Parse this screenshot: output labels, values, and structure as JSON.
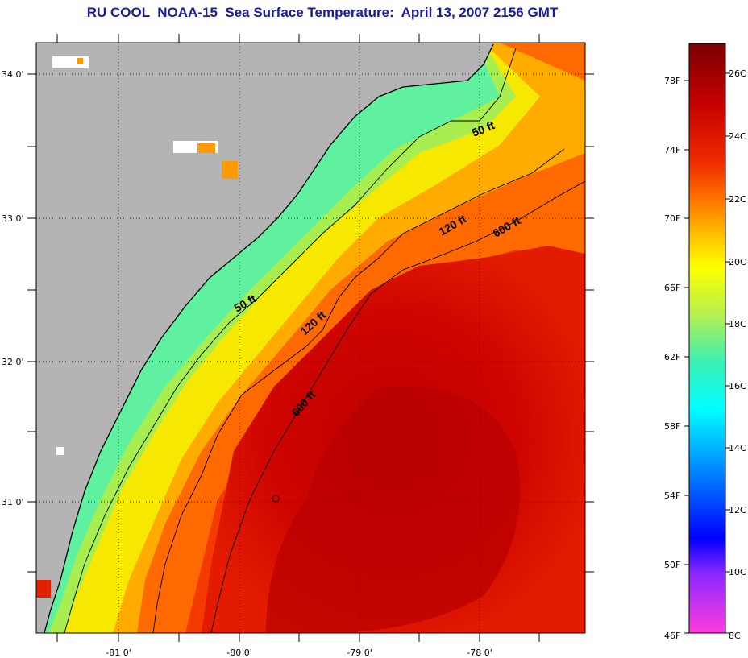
{
  "title": "RU COOL  NOAA-15  Sea Surface Temperature:  April 13, 2007 2156 GMT",
  "map": {
    "lon_labels": [
      "-81 0'",
      "-80 0'",
      "-79 0'",
      "-78 0'"
    ],
    "lat_labels": [
      "34 0'",
      "33 0'",
      "32 0'",
      "31 0'"
    ],
    "contours": [
      {
        "label": "50 ft"
      },
      {
        "label": "50 ft"
      },
      {
        "label": "120 ft"
      },
      {
        "label": "120 ft"
      },
      {
        "label": "600 ft"
      },
      {
        "label": "600 ft"
      }
    ]
  },
  "colorbar": {
    "fahrenheit_labels": [
      "78F",
      "74F",
      "70F",
      "66F",
      "62F",
      "58F",
      "54F",
      "50F",
      "46F"
    ],
    "celsius_labels": [
      "26C",
      "24C",
      "22C",
      "20C",
      "18C",
      "16C",
      "14C",
      "12C",
      "10C",
      "8C"
    ],
    "colors": [
      "#7a0000",
      "#c40000",
      "#ee2a00",
      "#ff7a00",
      "#ffc800",
      "#ffff00",
      "#b4f050",
      "#3cf0b4",
      "#00ffff",
      "#008cff",
      "#0000ff",
      "#8c28ff",
      "#ff3cdc"
    ]
  }
}
